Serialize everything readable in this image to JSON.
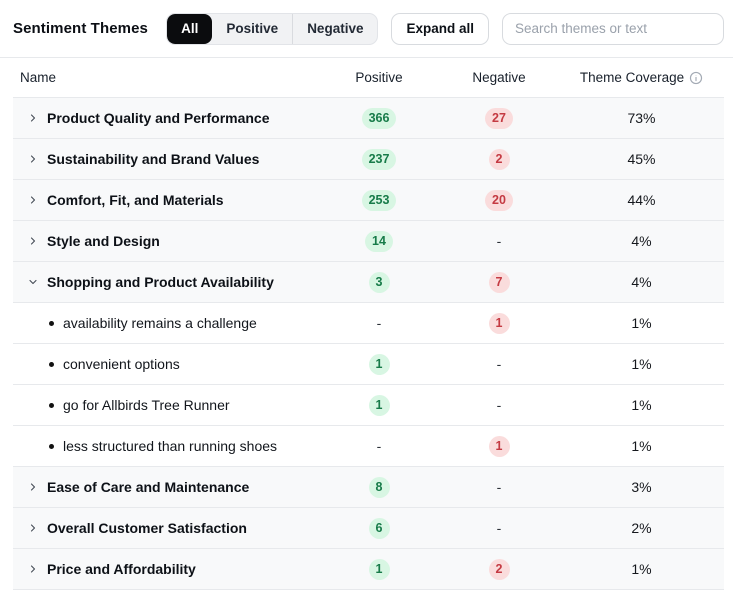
{
  "header": {
    "title": "Sentiment Themes",
    "tabs": [
      {
        "label": "All",
        "active": true
      },
      {
        "label": "Positive",
        "active": false
      },
      {
        "label": "Negative",
        "active": false
      }
    ],
    "expand_all_label": "Expand all",
    "search_placeholder": "Search themes or text"
  },
  "table": {
    "columns": {
      "name": "Name",
      "positive": "Positive",
      "negative": "Negative",
      "coverage": "Theme Coverage"
    },
    "rows": [
      {
        "type": "theme",
        "expanded": false,
        "name": "Product Quality and Performance",
        "positive": "366",
        "negative": "27",
        "coverage": "73%"
      },
      {
        "type": "theme",
        "expanded": false,
        "name": "Sustainability and Brand Values",
        "positive": "237",
        "negative": "2",
        "coverage": "45%"
      },
      {
        "type": "theme",
        "expanded": false,
        "name": "Comfort, Fit, and Materials",
        "positive": "253",
        "negative": "20",
        "coverage": "44%"
      },
      {
        "type": "theme",
        "expanded": false,
        "name": "Style and Design",
        "positive": "14",
        "negative": "-",
        "coverage": "4%"
      },
      {
        "type": "theme",
        "expanded": true,
        "name": "Shopping and Product Availability",
        "positive": "3",
        "negative": "7",
        "coverage": "4%"
      },
      {
        "type": "sub",
        "name": "availability remains a challenge",
        "positive": "-",
        "negative": "1",
        "coverage": "1%"
      },
      {
        "type": "sub",
        "name": "convenient options",
        "positive": "1",
        "negative": "-",
        "coverage": "1%"
      },
      {
        "type": "sub",
        "name": "go for Allbirds Tree Runner",
        "positive": "1",
        "negative": "-",
        "coverage": "1%"
      },
      {
        "type": "sub",
        "name": "less structured than running shoes",
        "positive": "-",
        "negative": "1",
        "coverage": "1%"
      },
      {
        "type": "theme",
        "expanded": false,
        "name": "Ease of Care and Maintenance",
        "positive": "8",
        "negative": "-",
        "coverage": "3%"
      },
      {
        "type": "theme",
        "expanded": false,
        "name": "Overall Customer Satisfaction",
        "positive": "6",
        "negative": "-",
        "coverage": "2%"
      },
      {
        "type": "theme",
        "expanded": false,
        "name": "Price and Affordability",
        "positive": "1",
        "negative": "2",
        "coverage": "1%"
      }
    ]
  },
  "colors": {
    "positive_badge_bg": "#d8f6e3",
    "positive_badge_text": "#177b49",
    "negative_badge_bg": "#fadcdc",
    "negative_badge_text": "#c43a42",
    "row_theme_bg": "#f8f9fa",
    "divider": "#e7e9ec",
    "active_tab_bg": "#0b0c0e"
  }
}
